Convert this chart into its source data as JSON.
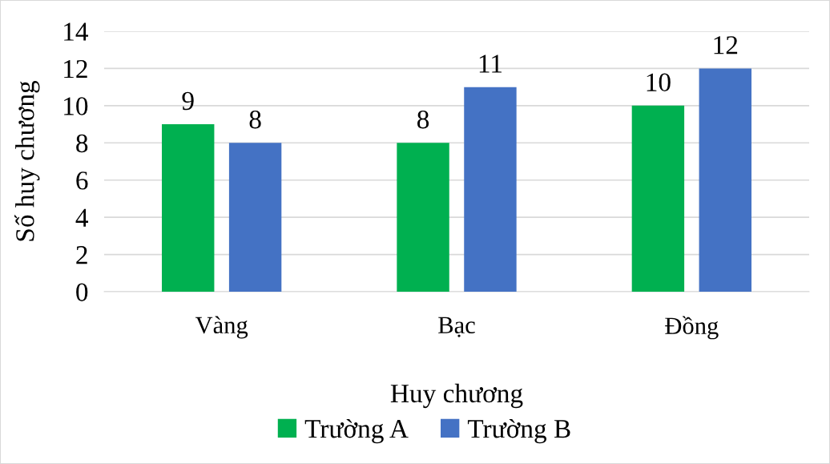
{
  "chart_data": {
    "type": "bar",
    "xlabel": "Huy chương",
    "ylabel": "Số huy chương",
    "categories": [
      "Vàng",
      "Bạc",
      "Đồng"
    ],
    "series": [
      {
        "name": "Trường A",
        "color": "#00b050",
        "values": [
          9,
          8,
          10
        ]
      },
      {
        "name": "Trường B",
        "color": "#4472c4",
        "values": [
          8,
          11,
          12
        ]
      }
    ],
    "ylim": [
      0,
      14
    ],
    "yticks": [
      0,
      2,
      4,
      6,
      8,
      10,
      12,
      14
    ],
    "grid": "y",
    "legend": "bottom",
    "data_labels": true
  }
}
